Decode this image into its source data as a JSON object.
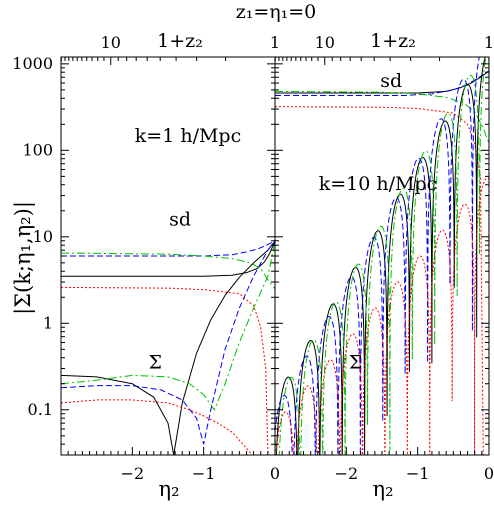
{
  "figure_title": "z₁=η₁=0",
  "ylabel": "|Σ(k;η₁,η₂)|",
  "colors": {
    "black": "#000000",
    "blue": "#0000ff",
    "green": "#00c000",
    "red": "#ff0000"
  },
  "chart_data": [
    {
      "type": "line",
      "panel": "left",
      "annotation": "k=1 h/Mpc",
      "xlabel": "η₂",
      "top_axis_label": "1+z₂",
      "xlim": [
        -3,
        0
      ],
      "ylim": [
        0.03,
        1200
      ],
      "yscale": "log",
      "x_tick_labels": [
        "−2",
        "−1",
        "0"
      ],
      "x_ticks": [
        -2,
        -1,
        0
      ],
      "top_tick_labels": [
        "10",
        "1"
      ],
      "top_ticks": [
        -2.302585,
        0
      ],
      "y_tick_labels": [
        "0.1",
        "1",
        "10",
        "100",
        "1000"
      ],
      "y_ticks": [
        0.1,
        1,
        10,
        100,
        1000
      ],
      "labels": [
        {
          "text": "sd",
          "x": -1.33,
          "y": 13.5
        },
        {
          "text": "Σ",
          "x": -1.68,
          "y": 0.3
        }
      ],
      "series": [
        {
          "group": "sd",
          "color": "black",
          "style": "solid",
          "x": [
            -3,
            -1.0,
            -0.6,
            -0.4,
            -0.25,
            -0.15,
            -0.08,
            0
          ],
          "y": [
            3.5,
            3.5,
            3.6,
            3.85,
            4.3,
            5.1,
            6.3,
            8.9
          ]
        },
        {
          "group": "sd",
          "color": "blue",
          "style": "dashed",
          "x": [
            -3,
            -1.0,
            -0.6,
            -0.4,
            -0.25,
            -0.15,
            -0.08,
            0
          ],
          "y": [
            6.0,
            6.0,
            6.2,
            6.7,
            7.2,
            7.8,
            8.3,
            8.9
          ]
        },
        {
          "group": "sd",
          "color": "green",
          "style": "dash-dot",
          "x": [
            -3,
            -1.5,
            -1.0,
            -0.6,
            -0.35,
            -0.2,
            -0.08,
            0
          ],
          "y": [
            6.5,
            6.3,
            6.0,
            5.6,
            5.0,
            4.3,
            3.0,
            2.5
          ]
        },
        {
          "group": "sd",
          "color": "red",
          "style": "dotted",
          "x": [
            -3,
            -1.5,
            -1.0,
            -0.5,
            -0.3,
            -0.2,
            -0.13,
            -0.1
          ],
          "y": [
            2.6,
            2.55,
            2.45,
            2.2,
            1.6,
            0.9,
            0.3,
            0.03
          ]
        },
        {
          "group": "Σ",
          "color": "black",
          "style": "solid",
          "x": [
            -3,
            -2.5,
            -2.0,
            -1.7,
            -1.5,
            -1.42,
            -1.3,
            -1.1,
            -0.9,
            -0.7,
            -0.5,
            -0.3,
            -0.1,
            0
          ],
          "y": [
            0.25,
            0.24,
            0.2,
            0.14,
            0.07,
            0.03,
            0.12,
            0.45,
            1.1,
            2.1,
            3.4,
            5.0,
            7.0,
            8.9
          ]
        },
        {
          "group": "Σ",
          "color": "blue",
          "style": "dashed",
          "x": [
            -3,
            -2.5,
            -2.0,
            -1.6,
            -1.3,
            -1.1,
            -1.0,
            -0.9,
            -0.7,
            -0.5,
            -0.3,
            -0.1,
            0
          ],
          "y": [
            0.18,
            0.19,
            0.19,
            0.17,
            0.13,
            0.08,
            0.04,
            0.1,
            0.5,
            1.5,
            3.5,
            7.0,
            8.9
          ]
        },
        {
          "group": "Σ",
          "color": "green",
          "style": "dash-dot",
          "x": [
            -3,
            -2.5,
            -2.0,
            -1.5,
            -1.2,
            -1.0,
            -0.85,
            -0.7,
            -0.5,
            -0.3,
            -0.1,
            0
          ],
          "y": [
            0.2,
            0.22,
            0.25,
            0.24,
            0.2,
            0.15,
            0.1,
            0.2,
            0.6,
            1.5,
            3.5,
            8.9
          ]
        },
        {
          "group": "Σ",
          "color": "red",
          "style": "dotted",
          "x": [
            -3,
            -2.5,
            -2.0,
            -1.5,
            -1.2,
            -1.0,
            -0.8,
            -0.6,
            -0.45,
            -0.35,
            -0.32
          ],
          "y": [
            0.12,
            0.13,
            0.13,
            0.12,
            0.1,
            0.085,
            0.07,
            0.055,
            0.04,
            0.032,
            0.03
          ]
        }
      ]
    },
    {
      "type": "line",
      "panel": "right",
      "annotation": "k=10 h/Mpc",
      "xlabel": "η₂",
      "top_axis_label": "1+z₂",
      "xlim": [
        -3,
        0
      ],
      "ylim": [
        0.03,
        1200
      ],
      "yscale": "log",
      "x_tick_labels": [
        "−2",
        "−1",
        "0"
      ],
      "x_ticks": [
        -2,
        -1,
        0
      ],
      "top_tick_labels": [
        "10",
        "1"
      ],
      "top_ticks": [
        -2.302585,
        0
      ],
      "labels": [
        {
          "text": "sd",
          "x": -1.37,
          "y": 540
        },
        {
          "text": "Σ",
          "x": -1.87,
          "y": 0.3
        }
      ],
      "series": [
        {
          "group": "sd",
          "color": "black",
          "style": "solid",
          "x": [
            -3,
            -1.0,
            -0.6,
            -0.4,
            -0.25,
            -0.12,
            0
          ],
          "y": [
            460,
            460,
            480,
            530,
            600,
            700,
            830
          ]
        },
        {
          "group": "sd",
          "color": "blue",
          "style": "dashed",
          "x": [
            -3,
            -1.2,
            -0.8,
            -0.5,
            -0.3,
            -0.15,
            0
          ],
          "y": [
            430,
            430,
            450,
            500,
            580,
            690,
            830
          ]
        },
        {
          "group": "sd",
          "color": "green",
          "style": "dash-dot",
          "x": [
            -3,
            -1.5,
            -1.0,
            -0.6,
            -0.35,
            -0.2,
            -0.08,
            0
          ],
          "y": [
            480,
            470,
            450,
            410,
            350,
            280,
            180,
            120
          ]
        },
        {
          "group": "sd",
          "color": "red",
          "style": "dotted",
          "x": [
            -3,
            -1.5,
            -1.0,
            -0.5,
            -0.3,
            -0.2,
            -0.12,
            -0.08
          ],
          "y": [
            320,
            315,
            305,
            270,
            200,
            120,
            50,
            0.03
          ]
        },
        {
          "group": "Σ",
          "color": "black",
          "style": "solid",
          "kind": "oscillation",
          "k": 10,
          "amp": 0.14,
          "grow": 3.1,
          "end": 830
        },
        {
          "group": "Σ",
          "color": "blue",
          "style": "dashed",
          "kind": "oscillation",
          "k": 10,
          "amp": 0.1,
          "grow": 3.35,
          "end": 830,
          "phase": 0.06
        },
        {
          "group": "Σ",
          "color": "green",
          "style": "dash-dot",
          "kind": "oscillation",
          "k": 10,
          "amp": 0.12,
          "grow": 3.2,
          "end": 120,
          "phase": -0.04
        },
        {
          "group": "Σ",
          "color": "red",
          "style": "dotted",
          "kind": "oscillation",
          "k": 10,
          "amp": 0.07,
          "grow": 2.2,
          "end": 0.03,
          "phase": 0.03
        }
      ]
    }
  ]
}
